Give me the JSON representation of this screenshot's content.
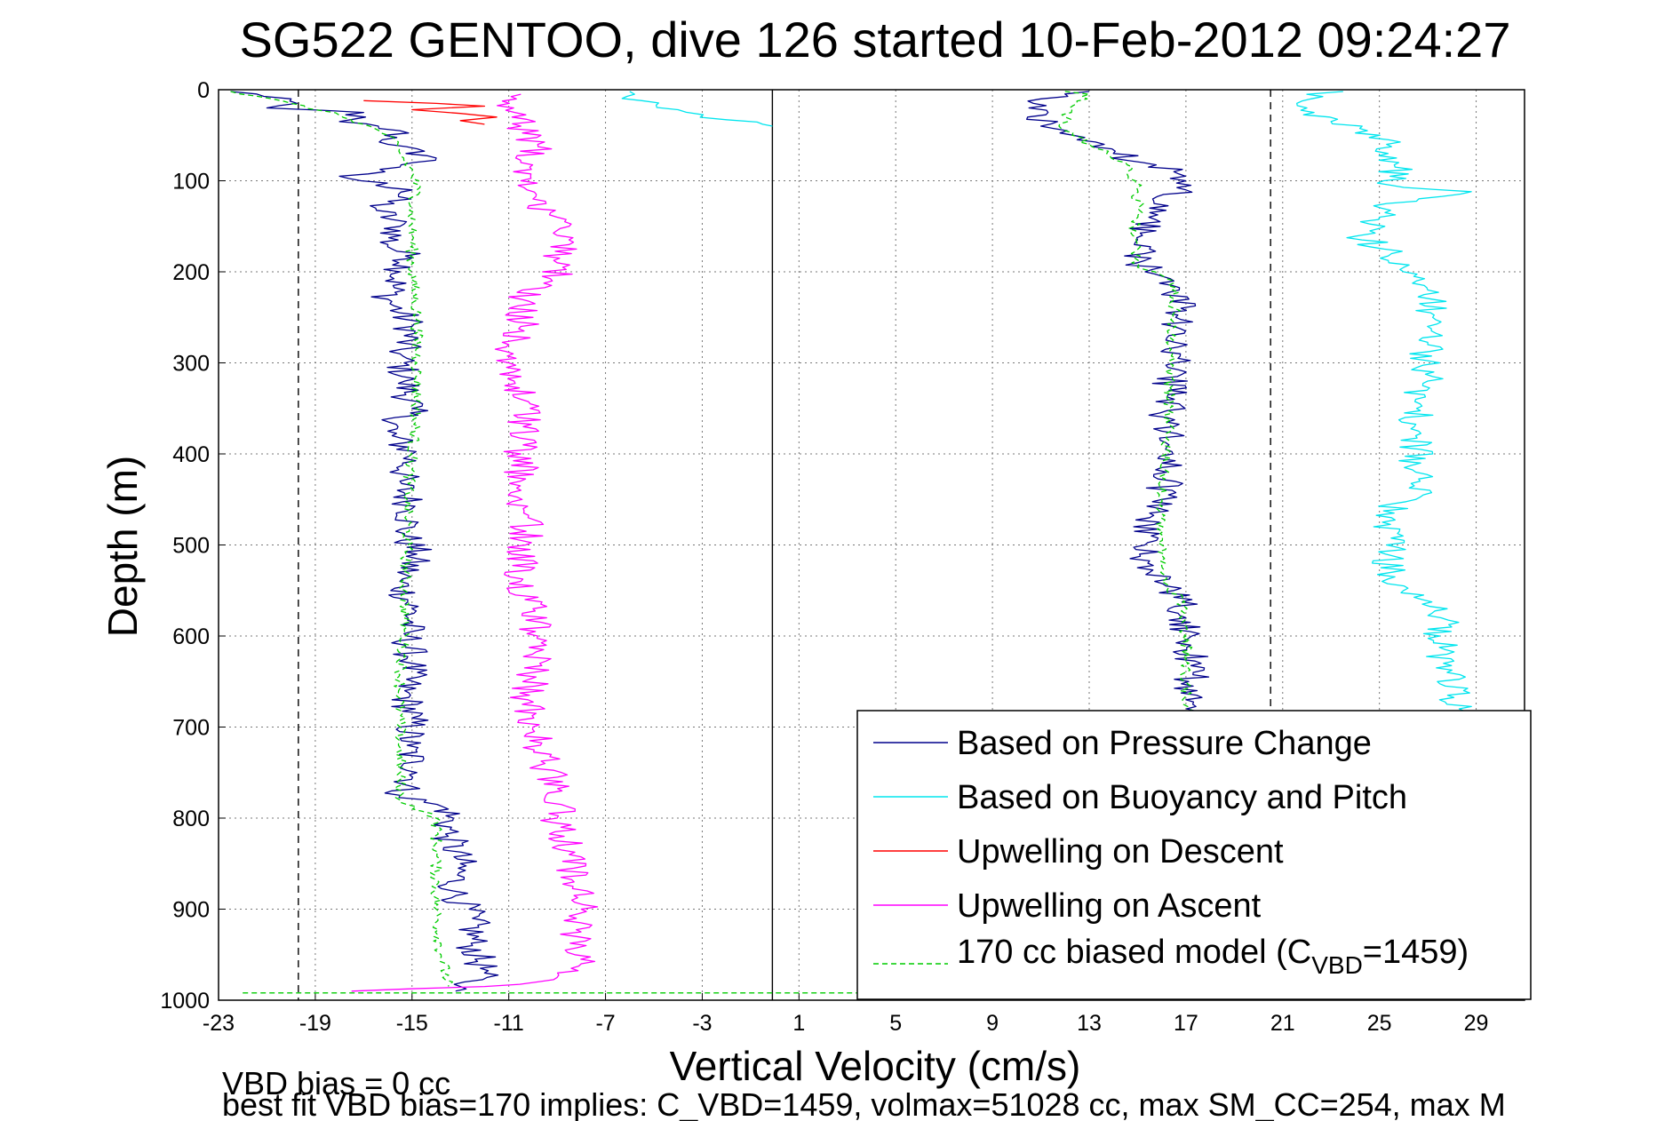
{
  "chart_data": {
    "type": "line",
    "title": "SG522 GENTOO, dive 126 started 10-Feb-2012 09:24:27",
    "xlabel": "Vertical Velocity (cm/s)",
    "ylabel": "Depth (m)",
    "xlim": [
      -23,
      31
    ],
    "ylim": [
      1000,
      0
    ],
    "y_reversed": true,
    "grid": true,
    "legend_position": "bottom-right",
    "xticks": [
      "-23",
      "-19",
      "-15",
      "-11",
      "-7",
      "-3",
      "1",
      "5",
      "9",
      "13",
      "17",
      "21",
      "25",
      "29"
    ],
    "yticks": [
      "0",
      "100",
      "200",
      "300",
      "400",
      "500",
      "600",
      "700",
      "800",
      "900",
      "1000"
    ],
    "reference_lines": [
      {
        "x": -19.7,
        "style": "dashed",
        "color": "#000000"
      },
      {
        "x": -0.1,
        "style": "solid",
        "color": "#000000"
      },
      {
        "x": 20.5,
        "style": "dashed",
        "color": "#000000"
      }
    ],
    "footer": [
      "VBD bias = 0 cc",
      "best fit VBD bias=170 implies: C_VBD=1459, volmax=51028 cc, max SM_CC=254, max M"
    ],
    "series": [
      {
        "name": "Based on Pressure Change",
        "color": "#00008b",
        "branch": "descent",
        "points": [
          [
            -22.5,
            2
          ],
          [
            -20,
            10
          ],
          [
            -21,
            20
          ],
          [
            -17,
            25
          ],
          [
            -18,
            35
          ],
          [
            -15.5,
            45
          ],
          [
            -16,
            60
          ],
          [
            -14,
            75
          ],
          [
            -15.5,
            85
          ],
          [
            -18,
            95
          ],
          [
            -15,
            110
          ],
          [
            -16.5,
            130
          ],
          [
            -15.5,
            150
          ],
          [
            -16,
            170
          ],
          [
            -15,
            185
          ],
          [
            -15.5,
            200
          ],
          [
            -16,
            230
          ],
          [
            -15,
            260
          ],
          [
            -15.5,
            290
          ],
          [
            -15.3,
            320
          ],
          [
            -15,
            350
          ],
          [
            -16,
            375
          ],
          [
            -15,
            400
          ],
          [
            -15.5,
            430
          ],
          [
            -15,
            460
          ],
          [
            -15.3,
            490
          ],
          [
            -14.8,
            510
          ],
          [
            -15.5,
            540
          ],
          [
            -15,
            570
          ],
          [
            -15.2,
            600
          ],
          [
            -15,
            630
          ],
          [
            -15.3,
            660
          ],
          [
            -15,
            690
          ],
          [
            -15.2,
            720
          ],
          [
            -14.8,
            750
          ],
          [
            -15.5,
            775
          ],
          [
            -13.5,
            790
          ],
          [
            -13.5,
            820
          ],
          [
            -13,
            850
          ],
          [
            -13.3,
            880
          ],
          [
            -12.5,
            910
          ],
          [
            -12.5,
            940
          ],
          [
            -12,
            970
          ],
          [
            -13,
            985
          ],
          [
            -13.2,
            990
          ]
        ]
      },
      {
        "name": "Based on Pressure Change",
        "color": "#00008b",
        "branch": "ascent",
        "points": [
          [
            13,
            990
          ],
          [
            16.5,
            980
          ],
          [
            17,
            960
          ],
          [
            17.2,
            930
          ],
          [
            17,
            900
          ],
          [
            17.3,
            860
          ],
          [
            17.2,
            820
          ],
          [
            17,
            780
          ],
          [
            17.2,
            740
          ],
          [
            17.2,
            700
          ],
          [
            17,
            670
          ],
          [
            17.3,
            640
          ],
          [
            17.2,
            610
          ],
          [
            17,
            580
          ],
          [
            16.5,
            550
          ],
          [
            15.5,
            530
          ],
          [
            15.3,
            500
          ],
          [
            15.5,
            470
          ],
          [
            16,
            450
          ],
          [
            16.2,
            420
          ],
          [
            16.3,
            390
          ],
          [
            16.2,
            360
          ],
          [
            16.3,
            330
          ],
          [
            16.5,
            300
          ],
          [
            16.3,
            270
          ],
          [
            16.8,
            240
          ],
          [
            16.5,
            210
          ],
          [
            15,
            190
          ],
          [
            15.2,
            160
          ],
          [
            15.5,
            130
          ],
          [
            17,
            110
          ],
          [
            16.5,
            90
          ],
          [
            14,
            70
          ],
          [
            12.5,
            55
          ],
          [
            11,
            40
          ],
          [
            11.3,
            25
          ],
          [
            11,
            10
          ],
          [
            13,
            2
          ]
        ]
      },
      {
        "name": "Based on Buoyancy and Pitch",
        "color": "#00e5ee",
        "branch": "descent",
        "points": [
          [
            -0.1,
            40
          ],
          [
            -0.5,
            38
          ],
          [
            -2,
            33
          ],
          [
            -4,
            22
          ],
          [
            -5.5,
            12
          ],
          [
            -5.8,
            5
          ],
          [
            -6,
            2
          ]
        ]
      },
      {
        "name": "Based on Buoyancy and Pitch",
        "color": "#00e5ee",
        "branch": "ascent",
        "points": [
          [
            22,
            995
          ],
          [
            24.5,
            990
          ],
          [
            25,
            960
          ],
          [
            25.5,
            900
          ],
          [
            26,
            860
          ],
          [
            27.5,
            840
          ],
          [
            28,
            800
          ],
          [
            27.8,
            760
          ],
          [
            28,
            730
          ],
          [
            28,
            700
          ],
          [
            28.3,
            680
          ],
          [
            27.8,
            640
          ],
          [
            27.5,
            600
          ],
          [
            27.8,
            570
          ],
          [
            26,
            550
          ],
          [
            25.5,
            530
          ],
          [
            25.3,
            500
          ],
          [
            25.5,
            470
          ],
          [
            25.5,
            455
          ],
          [
            26.5,
            450
          ],
          [
            26.5,
            420
          ],
          [
            26.5,
            380
          ],
          [
            26.5,
            340
          ],
          [
            27,
            320
          ],
          [
            27,
            280
          ],
          [
            27.2,
            250
          ],
          [
            27,
            220
          ],
          [
            26,
            200
          ],
          [
            25.5,
            180
          ],
          [
            24.2,
            160
          ],
          [
            25,
            140
          ],
          [
            25.3,
            125
          ],
          [
            28.8,
            112
          ],
          [
            25.5,
            105
          ],
          [
            25.8,
            80
          ],
          [
            25.3,
            60
          ],
          [
            24.5,
            45
          ],
          [
            23,
            35
          ],
          [
            22,
            20
          ],
          [
            22,
            5
          ],
          [
            23.5,
            2
          ]
        ]
      },
      {
        "name": "Upwelling on Descent",
        "color": "#ff0000",
        "points": [
          [
            -17,
            12
          ],
          [
            -14,
            15
          ],
          [
            -12,
            18
          ],
          [
            -15,
            22
          ],
          [
            -13,
            26
          ],
          [
            -11.5,
            30
          ],
          [
            -13,
            34
          ],
          [
            -12,
            38
          ]
        ]
      },
      {
        "name": "Upwelling on Ascent",
        "color": "#ff00ff",
        "points": [
          [
            -17.5,
            990
          ],
          [
            -12,
            985
          ],
          [
            -9,
            975
          ],
          [
            -8,
            960
          ],
          [
            -8.2,
            930
          ],
          [
            -8,
            900
          ],
          [
            -8.3,
            870
          ],
          [
            -8.5,
            840
          ],
          [
            -9,
            800
          ],
          [
            -8.8,
            770
          ],
          [
            -9.5,
            740
          ],
          [
            -10,
            700
          ],
          [
            -10.2,
            670
          ],
          [
            -10,
            640
          ],
          [
            -9.8,
            600
          ],
          [
            -10,
            570
          ],
          [
            -10.5,
            540
          ],
          [
            -10.3,
            500
          ],
          [
            -10.2,
            470
          ],
          [
            -10.5,
            440
          ],
          [
            -10.5,
            400
          ],
          [
            -10.4,
            370
          ],
          [
            -10.5,
            340
          ],
          [
            -10.8,
            310
          ],
          [
            -11,
            280
          ],
          [
            -10.5,
            260
          ],
          [
            -10.5,
            230
          ],
          [
            -9.2,
            210
          ],
          [
            -9,
            190
          ],
          [
            -8.5,
            170
          ],
          [
            -9,
            160
          ],
          [
            -9,
            140
          ],
          [
            -10,
            120
          ],
          [
            -10.5,
            100
          ],
          [
            -10.5,
            80
          ],
          [
            -9.8,
            60
          ],
          [
            -10.5,
            40
          ],
          [
            -10.8,
            20
          ],
          [
            -10.5,
            5
          ]
        ]
      },
      {
        "name": "170 cc biased model (C_VBD=1459)",
        "color": "#00cc00",
        "style": "dashed",
        "branch": "descent",
        "points": [
          [
            -22.5,
            2
          ],
          [
            -20,
            15
          ],
          [
            -18,
            28
          ],
          [
            -17,
            38
          ],
          [
            -16,
            50
          ],
          [
            -15.5,
            70
          ],
          [
            -15,
            90
          ],
          [
            -14.8,
            110
          ],
          [
            -15,
            130
          ],
          [
            -15,
            160
          ],
          [
            -15,
            200
          ],
          [
            -14.8,
            250
          ],
          [
            -14.8,
            300
          ],
          [
            -14.8,
            350
          ],
          [
            -15,
            400
          ],
          [
            -15.2,
            450
          ],
          [
            -15.2,
            500
          ],
          [
            -15.3,
            550
          ],
          [
            -15.3,
            600
          ],
          [
            -15.5,
            650
          ],
          [
            -15.5,
            700
          ],
          [
            -15.5,
            750
          ],
          [
            -15.5,
            780
          ],
          [
            -14,
            800
          ],
          [
            -14,
            850
          ],
          [
            -14,
            900
          ],
          [
            -13.8,
            950
          ],
          [
            -13.5,
            985
          ]
        ]
      },
      {
        "name": "170 cc biased model (C_VBD=1459)",
        "color": "#00cc00",
        "style": "dashed",
        "branch": "ascent",
        "points": [
          [
            -22,
            992
          ],
          [
            20,
            992
          ],
          [
            17,
            985
          ],
          [
            17,
            940
          ],
          [
            17,
            900
          ],
          [
            17,
            850
          ],
          [
            17,
            800
          ],
          [
            17,
            750
          ],
          [
            17,
            700
          ],
          [
            17,
            650
          ],
          [
            17,
            600
          ],
          [
            16.8,
            560
          ],
          [
            16,
            540
          ],
          [
            16,
            500
          ],
          [
            16,
            450
          ],
          [
            16.2,
            400
          ],
          [
            16.3,
            350
          ],
          [
            16.3,
            300
          ],
          [
            16.5,
            250
          ],
          [
            16.5,
            210
          ],
          [
            15,
            195
          ],
          [
            14.8,
            160
          ],
          [
            15,
            130
          ],
          [
            15,
            110
          ],
          [
            14.5,
            80
          ],
          [
            13,
            60
          ],
          [
            12,
            45
          ],
          [
            12,
            30
          ],
          [
            12.5,
            15
          ],
          [
            13,
            5
          ],
          [
            12,
            2
          ]
        ]
      }
    ]
  },
  "legend": {
    "pressure_change": "Based on Pressure Change",
    "buoyancy_pitch": "Based on Buoyancy and Pitch",
    "upwelling_descent": "Upwelling on Descent",
    "upwelling_ascent": "Upwelling on Ascent",
    "model_prefix": "170 cc biased model (C",
    "model_sub": "VBD",
    "model_suffix": "=1459)"
  }
}
